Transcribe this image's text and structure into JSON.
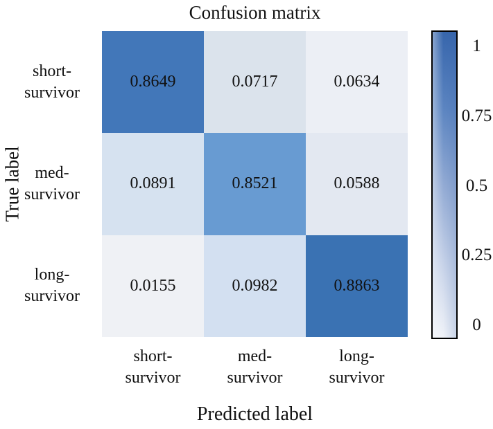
{
  "chart_data": {
    "type": "heatmap",
    "title": "Confusion matrix",
    "xlabel": "Predicted label",
    "ylabel": "True label",
    "categories": [
      "short-survivor",
      "med-survivor",
      "long-survivor"
    ],
    "category_lines": [
      [
        "short-",
        "survivor"
      ],
      [
        "med-",
        "survivor"
      ],
      [
        "long-",
        "survivor"
      ]
    ],
    "matrix": [
      [
        0.8649,
        0.0717,
        0.0634
      ],
      [
        0.0891,
        0.8521,
        0.0588
      ],
      [
        0.0155,
        0.0982,
        0.8863
      ]
    ],
    "value_decimals": 4,
    "cell_colors": [
      [
        "#4277B9",
        "#DBE3EC",
        "#ECEFF5"
      ],
      [
        "#D6E2F0",
        "#689BD2",
        "#E3E8F1"
      ],
      [
        "#EFF1F5",
        "#D3E0F1",
        "#3A72B3"
      ]
    ],
    "colorbar": {
      "tick_labels": [
        "1",
        "0.75",
        "0.5",
        "0.25",
        "0"
      ],
      "tick_values": [
        1,
        0.75,
        0.5,
        0.25,
        0
      ],
      "range": [
        0,
        1
      ],
      "gradient": [
        "#3766AC",
        "#5C85C1",
        "#93ABD4",
        "#C5D1E8",
        "#EFF2F8"
      ],
      "border_color": "#000000"
    },
    "grid": false,
    "text_color": "#111111",
    "background": "#ffffff"
  }
}
